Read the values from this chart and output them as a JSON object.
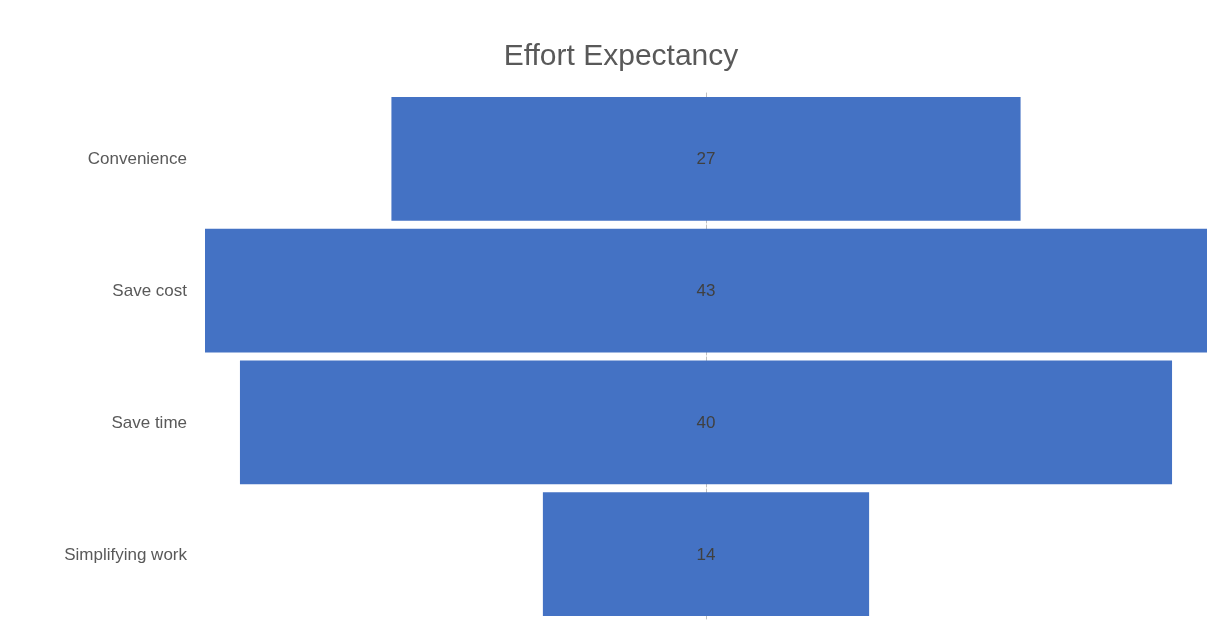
{
  "chart_data": {
    "type": "other",
    "title": "Effort Expectancy",
    "categories": [
      "Convenience",
      "Save cost",
      "Save time",
      "Simplifying work"
    ],
    "values": [
      27,
      43,
      40,
      14
    ],
    "color": "#4472c4",
    "data_labels": true
  }
}
